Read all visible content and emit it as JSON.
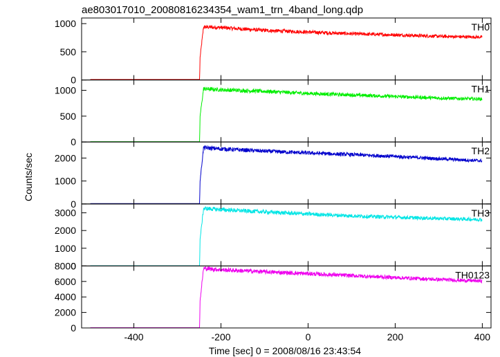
{
  "chart_data": {
    "type": "line",
    "title": "ae803017010_20080816234354_wam1_trn_4band_long.qdp",
    "xlabel": "Time [sec] 0 = 2008/08/16 23:43:54",
    "ylabel": "Counts/sec",
    "xlim": [
      -520,
      420
    ],
    "x_ticks": [
      "-400",
      "-200",
      "0",
      "200",
      "400"
    ],
    "x_tick_values": [
      -400,
      -200,
      0,
      200,
      400
    ],
    "grid": false,
    "trigger_time": -248,
    "data_x_range": [
      -500,
      400
    ],
    "panels": [
      {
        "name": "TH0",
        "color": "#ff0000",
        "ylim": [
          0,
          1100
        ],
        "y_ticks": [
          "0",
          "500",
          "1000"
        ],
        "y_tick_values": [
          0,
          500,
          1000
        ],
        "series": [
          {
            "x": [
              -500,
              -249,
              -248,
              -240,
              -200,
              -100,
              0,
              100,
              200,
              300,
              400
            ],
            "y": [
              8,
              8,
              400,
              940,
              930,
              880,
              850,
              820,
              800,
              775,
              760
            ]
          }
        ]
      },
      {
        "name": "TH1",
        "color": "#00ee00",
        "ylim": [
          0,
          1200
        ],
        "y_ticks": [
          "0",
          "500",
          "1000"
        ],
        "y_tick_values": [
          0,
          500,
          1000
        ],
        "series": [
          {
            "x": [
              -500,
              -249,
              -248,
              -240,
              -200,
              -100,
              0,
              100,
              200,
              300,
              400
            ],
            "y": [
              5,
              5,
              500,
              1030,
              1010,
              980,
              940,
              910,
              880,
              850,
              830
            ]
          }
        ]
      },
      {
        "name": "TH2",
        "color": "#0000cc",
        "ylim": [
          0,
          2700
        ],
        "y_ticks": [
          "0",
          "1000",
          "2000"
        ],
        "y_tick_values": [
          0,
          1000,
          2000
        ],
        "series": [
          {
            "x": [
              -500,
              -249,
              -248,
              -240,
              -200,
              -100,
              0,
              100,
              200,
              300,
              400
            ],
            "y": [
              15,
              15,
              1000,
              2450,
              2400,
              2300,
              2220,
              2150,
              2070,
              1970,
              1880
            ]
          }
        ]
      },
      {
        "name": "TH3",
        "color": "#00e5e5",
        "ylim": [
          0,
          3500
        ],
        "y_ticks": [
          "0",
          "1000",
          "2000",
          "3000"
        ],
        "y_tick_values": [
          0,
          1000,
          2000,
          3000
        ],
        "series": [
          {
            "x": [
              -500,
              -249,
              -248,
              -240,
              -200,
              -100,
              0,
              100,
              200,
              300,
              400
            ],
            "y": [
              10,
              10,
              1500,
              3250,
              3180,
              3050,
              2930,
              2830,
              2750,
              2680,
              2620
            ]
          }
        ]
      },
      {
        "name": "TH0123",
        "color": "#ee00ee",
        "ylim": [
          0,
          8000
        ],
        "y_ticks": [
          "0",
          "2000",
          "4000",
          "6000",
          "8000"
        ],
        "y_tick_values": [
          0,
          2000,
          4000,
          6000,
          8000
        ],
        "series": [
          {
            "x": [
              -500,
              -249,
              -248,
              -240,
              -200,
              -100,
              0,
              100,
              200,
              300,
              400
            ],
            "y": [
              40,
              40,
              3500,
              7700,
              7500,
              7250,
              7000,
              6750,
              6500,
              6250,
              6050
            ]
          }
        ]
      }
    ]
  }
}
